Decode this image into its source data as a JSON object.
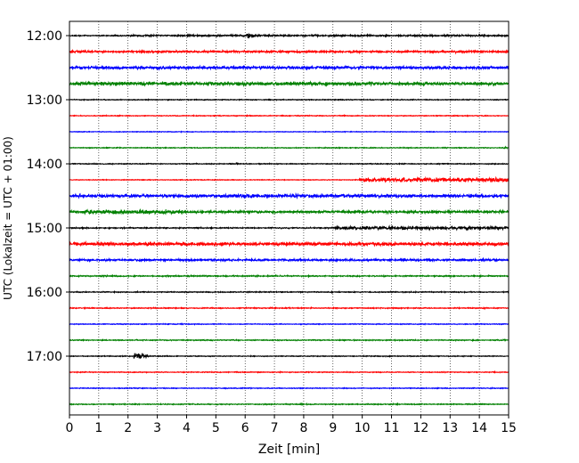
{
  "chart_data": {
    "type": "line",
    "title": "",
    "xlabel": "Zeit  [min]",
    "ylabel": "UTC (Lokalzeit = UTC + 01:00)",
    "xlim": [
      0,
      15
    ],
    "x_ticks": [
      "0",
      "1",
      "2",
      "3",
      "4",
      "5",
      "6",
      "7",
      "8",
      "9",
      "10",
      "11",
      "12",
      "13",
      "14",
      "15"
    ],
    "y_tick_labels": [
      "12:00",
      "13:00",
      "14:00",
      "15:00",
      "16:00",
      "17:00"
    ],
    "grid_x": true,
    "grid_style": "dotted",
    "trace_interval_min": 15,
    "color_cycle": [
      "#000000",
      "#ff0000",
      "#0000ff",
      "#008000"
    ],
    "traces": [
      {
        "start": "12:00",
        "color": "#000000",
        "noise": 0.35,
        "events": [
          {
            "t": 2.0,
            "t_end": 15.0,
            "amp": 0.5
          },
          {
            "t": 6.0,
            "t_end": 6.6,
            "amp": 1.9
          },
          {
            "t": 8.8,
            "t_end": 9.4,
            "amp": 0.9
          }
        ]
      },
      {
        "start": "12:15",
        "color": "#ff0000",
        "noise": 0.6,
        "events": [
          {
            "t": 4.85,
            "t_end": 4.95,
            "amp": 1.8
          }
        ]
      },
      {
        "start": "12:30",
        "color": "#0000ff",
        "noise": 0.9,
        "events": [
          {
            "t": 14.0,
            "t_end": 14.5,
            "amp": 1.2
          }
        ]
      },
      {
        "start": "12:45",
        "color": "#008000",
        "noise": 0.9,
        "events": [
          {
            "t": 0.0,
            "t_end": 10.5,
            "amp": 1.1
          }
        ]
      },
      {
        "start": "13:00",
        "color": "#000000",
        "noise": 0.25,
        "events": []
      },
      {
        "start": "13:15",
        "color": "#ff0000",
        "noise": 0.25,
        "events": []
      },
      {
        "start": "13:30",
        "color": "#0000ff",
        "noise": 0.2,
        "events": []
      },
      {
        "start": "13:45",
        "color": "#008000",
        "noise": 0.25,
        "events": [
          {
            "t": 14.8,
            "t_end": 15.0,
            "amp": 0.8
          }
        ]
      },
      {
        "start": "14:00",
        "color": "#000000",
        "noise": 0.25,
        "events": [
          {
            "t": 5.7,
            "t_end": 5.85,
            "amp": 0.8
          }
        ]
      },
      {
        "start": "14:15",
        "color": "#ff0000",
        "noise": 0.2,
        "events": [
          {
            "t": 9.9,
            "t_end": 15.0,
            "amp": 1.3
          }
        ]
      },
      {
        "start": "14:30",
        "color": "#0000ff",
        "noise": 1.0,
        "events": []
      },
      {
        "start": "14:45",
        "color": "#008000",
        "noise": 0.8,
        "events": [
          {
            "t": 0.5,
            "t_end": 4.0,
            "amp": 1.3
          },
          {
            "t": 10.0,
            "t_end": 10.4,
            "amp": 1.3
          }
        ]
      },
      {
        "start": "15:00",
        "color": "#000000",
        "noise": 0.35,
        "events": [
          {
            "t": 9.0,
            "t_end": 15.0,
            "amp": 1.0
          }
        ]
      },
      {
        "start": "15:15",
        "color": "#ff0000",
        "noise": 1.0,
        "events": []
      },
      {
        "start": "15:30",
        "color": "#0000ff",
        "noise": 0.6,
        "events": [
          {
            "t": 4.0,
            "t_end": 5.2,
            "amp": 0.7
          },
          {
            "t": 14.1,
            "t_end": 14.4,
            "amp": 1.3
          }
        ]
      },
      {
        "start": "15:45",
        "color": "#008000",
        "noise": 0.35,
        "events": []
      },
      {
        "start": "16:00",
        "color": "#000000",
        "noise": 0.3,
        "events": []
      },
      {
        "start": "16:15",
        "color": "#ff0000",
        "noise": 0.3,
        "events": []
      },
      {
        "start": "16:30",
        "color": "#0000ff",
        "noise": 0.25,
        "events": []
      },
      {
        "start": "16:45",
        "color": "#008000",
        "noise": 0.3,
        "events": []
      },
      {
        "start": "17:00",
        "color": "#000000",
        "noise": 0.25,
        "events": [
          {
            "t": 2.2,
            "t_end": 2.7,
            "amp": 2.6
          },
          {
            "t": 11.6,
            "t_end": 11.7,
            "amp": 0.7
          }
        ]
      },
      {
        "start": "17:15",
        "color": "#ff0000",
        "noise": 0.25,
        "events": []
      },
      {
        "start": "17:30",
        "color": "#0000ff",
        "noise": 0.25,
        "events": []
      },
      {
        "start": "17:45",
        "color": "#008000",
        "noise": 0.3,
        "events": []
      }
    ]
  }
}
